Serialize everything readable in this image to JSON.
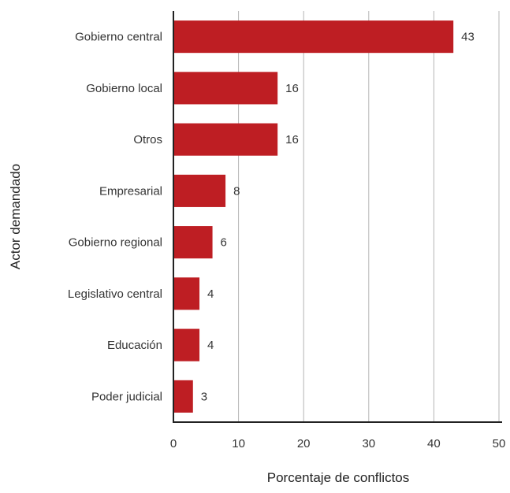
{
  "chart_data": {
    "type": "bar",
    "orientation": "horizontal",
    "categories": [
      "Gobierno central",
      "Gobierno local",
      "Otros",
      "Empresarial",
      "Gobierno regional",
      "Legislativo central",
      "Educación",
      "Poder judicial"
    ],
    "values": [
      43,
      16,
      16,
      8,
      6,
      4,
      4,
      3
    ],
    "xlabel": "Porcentaje de conflictos",
    "ylabel": "Actor demandado",
    "xlim": [
      0,
      50
    ],
    "xticks": [
      "0",
      "10",
      "20",
      "30",
      "40",
      "50"
    ],
    "grid": true,
    "bar_color": "#be1e23"
  }
}
